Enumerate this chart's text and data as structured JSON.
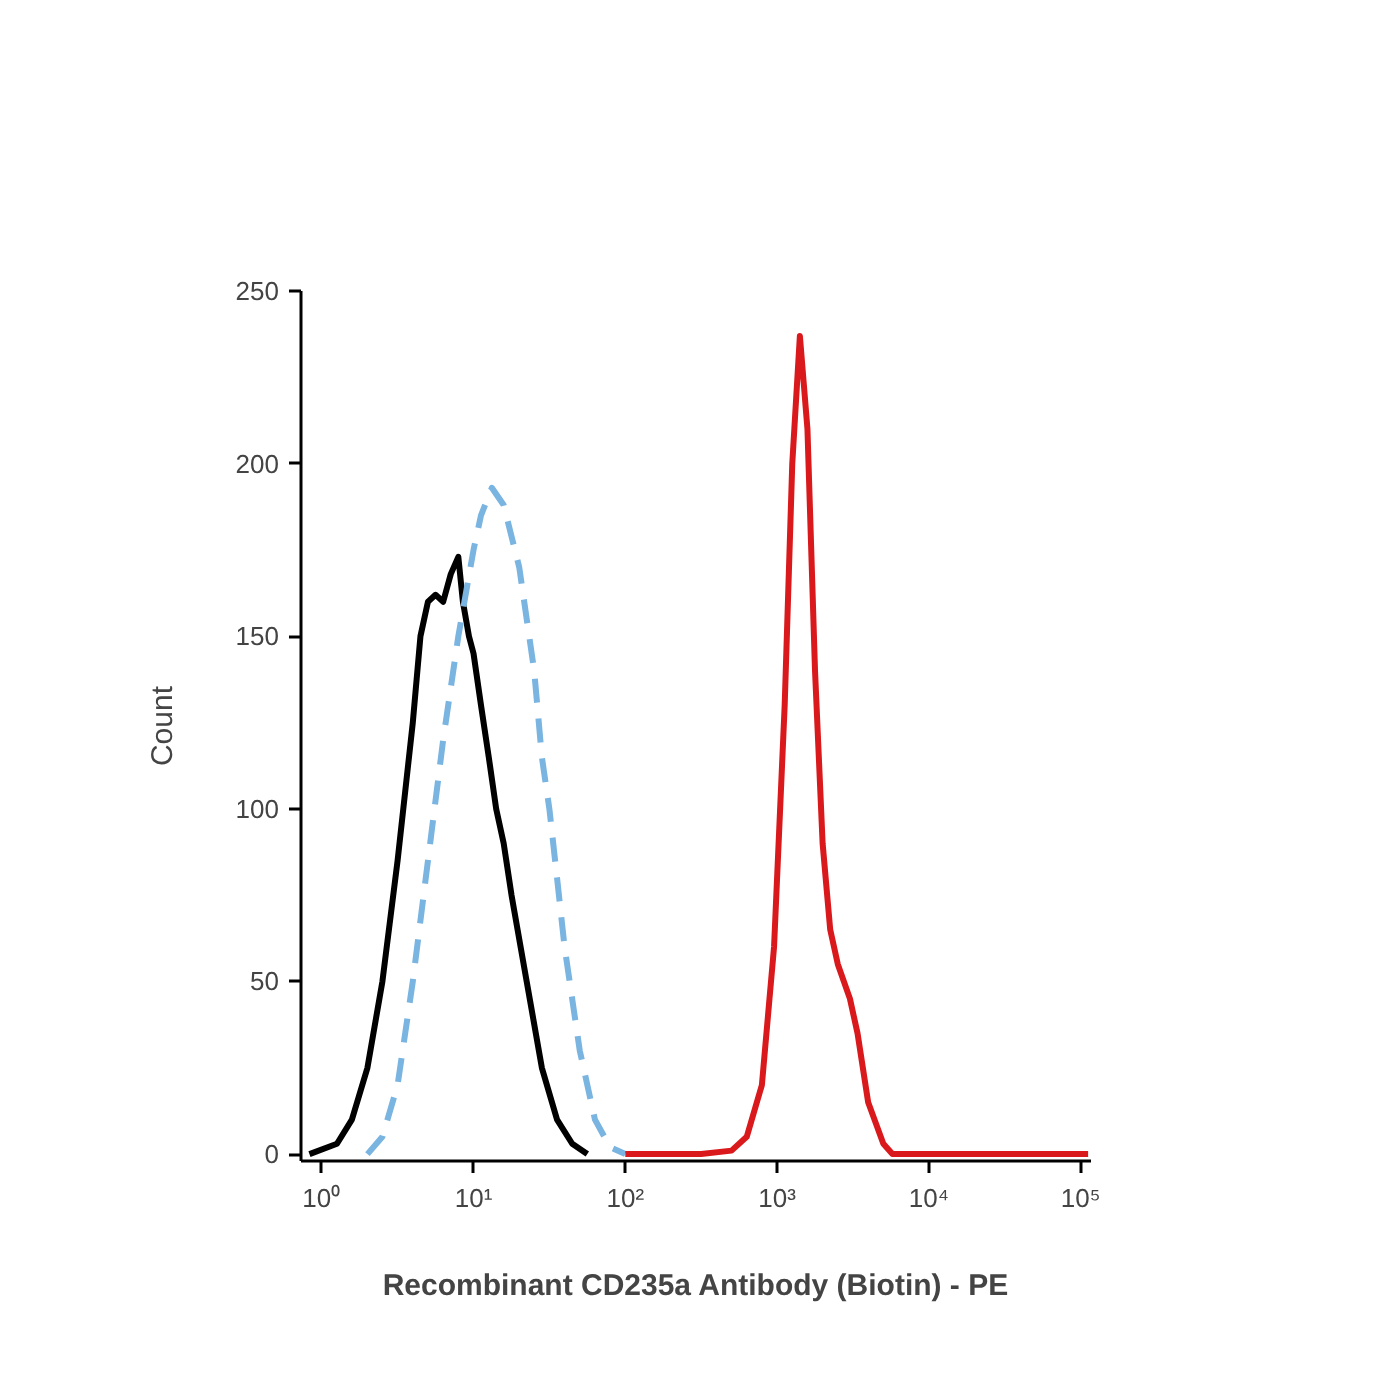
{
  "chart_data": {
    "type": "line",
    "xlabel": "Recombinant CD235a Antibody (Biotin) - PE",
    "ylabel": "Count",
    "log": "x",
    "grid": false,
    "xlim": [
      0.73,
      117000
    ],
    "ylim": [
      -2,
      250
    ],
    "xticks": [
      {
        "value": 1,
        "label": "10⁰"
      },
      {
        "value": 10,
        "label": "10¹"
      },
      {
        "value": 100,
        "label": "10²"
      },
      {
        "value": 1000,
        "label": "10³"
      },
      {
        "value": 10000,
        "label": "10⁴"
      },
      {
        "value": 100000,
        "label": "10⁵"
      }
    ],
    "yticks": [
      0,
      50,
      100,
      150,
      200,
      250
    ],
    "series": [
      {
        "color": "#000000",
        "line_style": "solid",
        "x": [
          0.83,
          1.26,
          1.58,
          2.0,
          2.51,
          3.16,
          3.98,
          4.47,
          5.01,
          5.62,
          6.31,
          7.08,
          7.94,
          8.51,
          9.33,
          10,
          11.2,
          12.6,
          14.1,
          15.8,
          17.8,
          22.4,
          28.2,
          35.5,
          44.7,
          56.2
        ],
        "values": [
          0,
          3,
          10,
          25,
          50,
          85,
          125,
          150,
          160,
          162,
          160,
          168,
          173,
          160,
          150,
          145,
          130,
          115,
          100,
          90,
          75,
          50,
          25,
          10,
          3,
          0
        ]
      },
      {
        "color": "#7ab4e0",
        "line_style": "dashed",
        "x": [
          2.0,
          2.51,
          3.16,
          3.98,
          5.01,
          6.31,
          7.94,
          10,
          11.2,
          13.2,
          15.8,
          20,
          25.1,
          28.2,
          31.6,
          35.5,
          39.8,
          50.1,
          63.1,
          79.4,
          100
        ],
        "values": [
          0,
          5,
          20,
          50,
          85,
          120,
          150,
          175,
          185,
          193,
          188,
          170,
          140,
          115,
          100,
          80,
          60,
          30,
          10,
          2,
          0
        ]
      },
      {
        "color": "#d9191c",
        "line_style": "solid",
        "x": [
          100,
          316,
          501,
          631,
          794,
          955,
          1122,
          1259,
          1413,
          1585,
          1778,
          1995,
          2239,
          2512,
          3020,
          3388,
          3981,
          5012,
          5754,
          10000,
          112000
        ],
        "values": [
          0,
          0,
          1,
          5,
          20,
          60,
          130,
          200,
          237,
          210,
          140,
          90,
          65,
          55,
          45,
          35,
          15,
          3,
          0,
          0,
          0
        ]
      }
    ]
  }
}
